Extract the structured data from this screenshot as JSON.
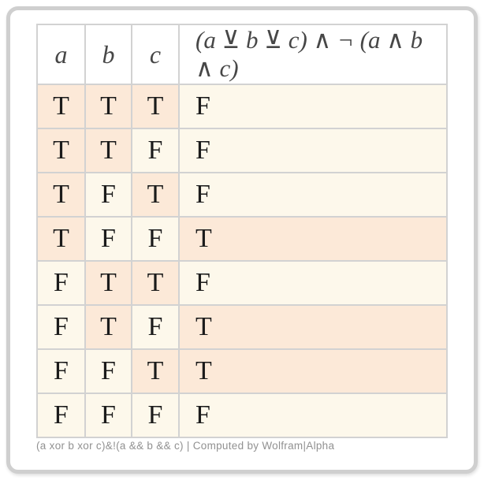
{
  "colors": {
    "true_bg": "#fce9d8",
    "false_bg": "#fdf8eb",
    "grid_line": "#d2d2d2",
    "card_border": "#cfcfcf",
    "header_text": "#474747",
    "cell_text": "#1b1b1b",
    "footer_text": "#919191"
  },
  "table": {
    "headers": {
      "a": "a",
      "b": "b",
      "c": "c",
      "expression": "(a ⊻ b ⊻ c) ∧ ¬ (a ∧ b ∧ c)"
    },
    "rows": [
      [
        "T",
        "T",
        "T",
        "F"
      ],
      [
        "T",
        "T",
        "F",
        "F"
      ],
      [
        "T",
        "F",
        "T",
        "F"
      ],
      [
        "T",
        "F",
        "F",
        "T"
      ],
      [
        "F",
        "T",
        "T",
        "F"
      ],
      [
        "F",
        "T",
        "F",
        "T"
      ],
      [
        "F",
        "F",
        "T",
        "T"
      ],
      [
        "F",
        "F",
        "F",
        "F"
      ]
    ]
  },
  "footer": {
    "caption": "(a xor b xor c)&!(a && b && c) | Computed by Wolfram|Alpha"
  }
}
